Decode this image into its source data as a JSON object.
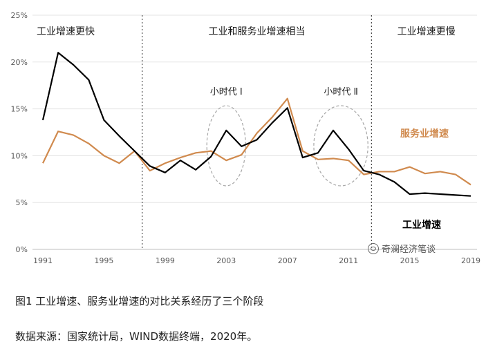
{
  "chart_data": {
    "type": "line",
    "title": "",
    "xlabel": "",
    "ylabel": "",
    "ylim": [
      0,
      25
    ],
    "y_ticks": [
      "0%",
      "5%",
      "10%",
      "15%",
      "20%",
      "25%"
    ],
    "x_ticks": [
      "1991",
      "1995",
      "1999",
      "2003",
      "2007",
      "2011",
      "2015",
      "2019"
    ],
    "grid": true,
    "x": [
      1991,
      1992,
      1993,
      1994,
      1995,
      1996,
      1997,
      1998,
      1999,
      2000,
      2001,
      2002,
      2003,
      2004,
      2005,
      2006,
      2007,
      2008,
      2009,
      2010,
      2011,
      2012,
      2013,
      2014,
      2015,
      2016,
      2017,
      2018,
      2019
    ],
    "series": [
      {
        "name": "工业增速",
        "color": "#000000",
        "values": [
          13.8,
          21.0,
          19.7,
          18.1,
          13.8,
          12.1,
          10.5,
          8.9,
          8.2,
          9.5,
          8.5,
          9.9,
          12.7,
          11.0,
          11.7,
          13.5,
          15.1,
          9.8,
          10.3,
          12.7,
          10.7,
          8.4,
          8.0,
          7.2,
          5.9,
          6.0,
          5.9,
          5.8,
          5.7
        ]
      },
      {
        "name": "服务业增速",
        "color": "#D08A4E",
        "values": [
          9.2,
          12.6,
          12.2,
          11.3,
          10.0,
          9.2,
          10.5,
          8.4,
          9.2,
          9.8,
          10.3,
          10.5,
          9.5,
          10.1,
          12.4,
          14.1,
          16.1,
          10.5,
          9.6,
          9.7,
          9.5,
          8.0,
          8.3,
          8.3,
          8.8,
          8.1,
          8.3,
          8.0,
          6.9
        ]
      }
    ],
    "dividers": [
      1997.5,
      2012.5
    ],
    "stages": [
      "工业增速更快",
      "工业和服务业增速相当",
      "工业增速更慢"
    ],
    "annotations": [
      "小时代 Ⅰ",
      "小时代 Ⅱ"
    ],
    "highlight_periods": [
      [
        2002,
        2004
      ],
      [
        2009,
        2012
      ]
    ]
  },
  "caption": "图1 工业增速、服务业增速的对比关系经历了三个阶段",
  "source": "数据来源：国家统计局，WIND数据终端，2020年。",
  "watermark": "奇澜经济笔谈"
}
